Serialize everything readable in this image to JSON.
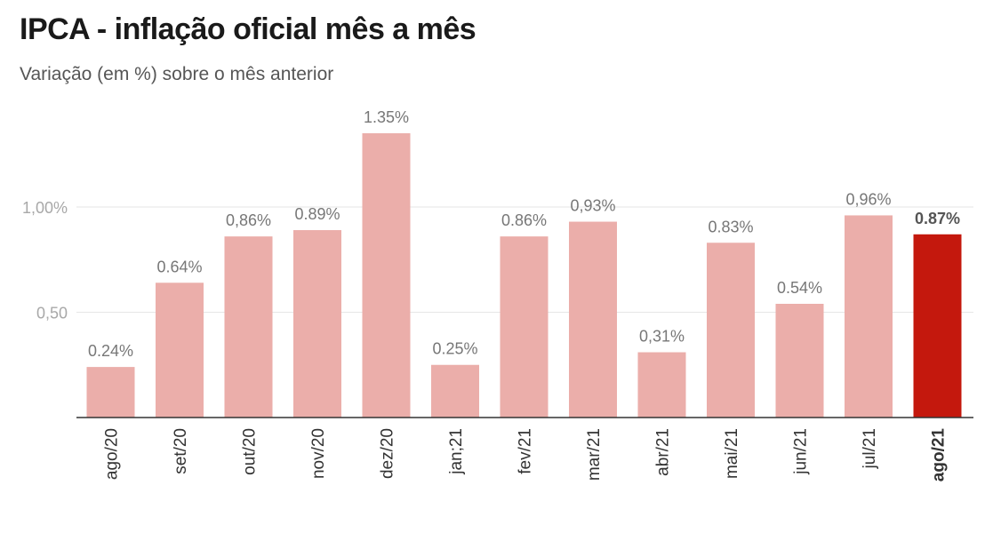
{
  "colors": {
    "bar": "#ebaeaa",
    "highlight": "#c4180d",
    "grid": "#e6e6e6",
    "axis": "#333333",
    "tick_label": "#a8a8a8",
    "value_label": "#777777",
    "category_label": "#333333"
  },
  "chart_data": {
    "type": "bar",
    "title": "IPCA - inflação oficial mês a mês",
    "subtitle": "Variação (em %) sobre o mês anterior",
    "categories": [
      "ago/20",
      "set/20",
      "out/20",
      "nov/20",
      "dez/20",
      "jan;21",
      "fev/21",
      "mar/21",
      "abr/21",
      "mai/21",
      "jun/21",
      "jul/21",
      "ago/21"
    ],
    "values": [
      0.24,
      0.64,
      0.86,
      0.89,
      1.35,
      0.25,
      0.86,
      0.93,
      0.31,
      0.83,
      0.54,
      0.96,
      0.87
    ],
    "value_labels": [
      "0.24%",
      "0.64%",
      "0,86%",
      "0.89%",
      "1.35%",
      "0.25%",
      "0.86%",
      "0,93%",
      "0,31%",
      "0.83%",
      "0.54%",
      "0,96%",
      "0.87%"
    ],
    "highlight_index": 12,
    "yticks": [
      0.5,
      1.0
    ],
    "ytick_labels": [
      "0,50",
      "1,00%"
    ],
    "ylim": [
      0,
      1.35
    ],
    "grid": true,
    "legend": "none",
    "xlabel": "",
    "ylabel": ""
  }
}
